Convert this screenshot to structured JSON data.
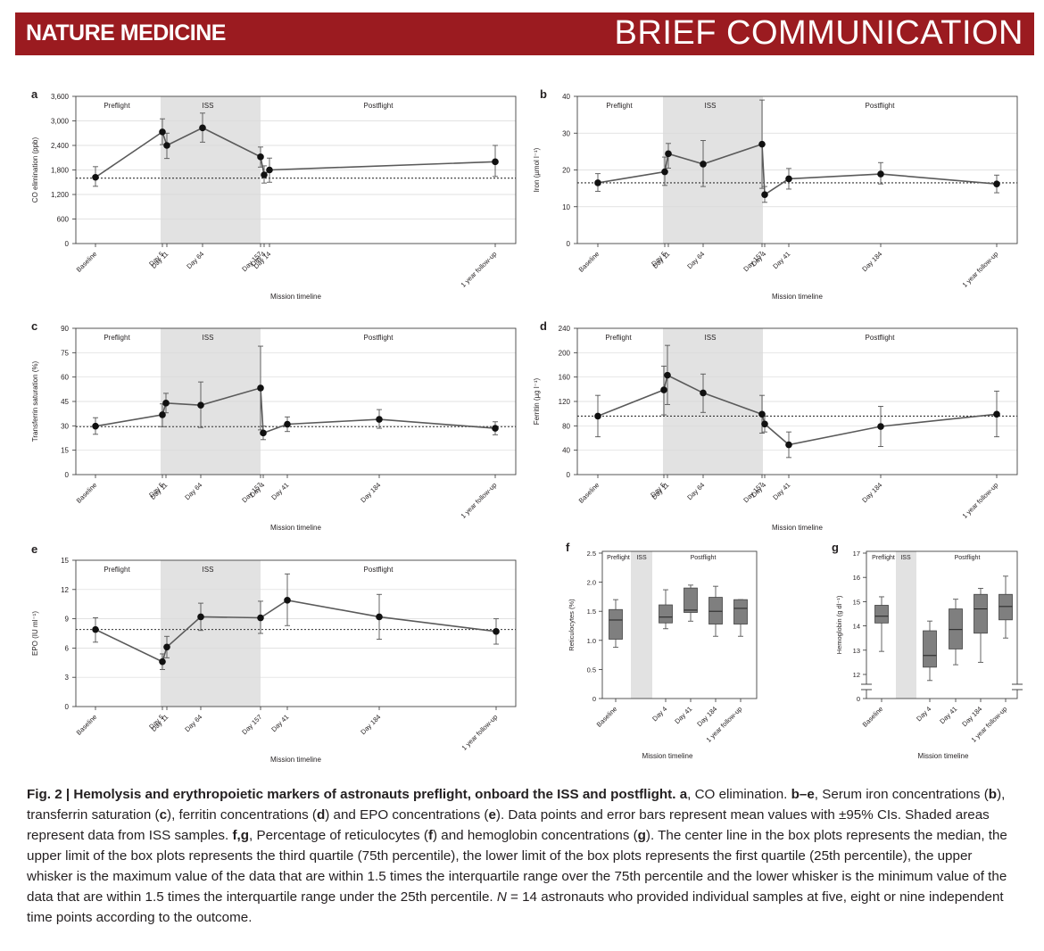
{
  "header": {
    "journal": "NATURE MEDICINE",
    "section": "BRIEF COMMUNICATION"
  },
  "colors": {
    "header_bg": "#9b1b20",
    "shade": "#e2e2e2",
    "box_fill": "#7f7f7f",
    "line": "#5a5a5a"
  },
  "caption": {
    "fig_label": "Fig. 2 | Hemolysis and erythropoietic markers of astronauts preflight, onboard the ISS and postflight.",
    "a_letter": "a",
    "a_text": ", CO elimination. ",
    "be_letters": "b–e",
    "be_text": ", Serum iron concentrations (",
    "b_letter": "b",
    "b_text": "), transferrin saturation (",
    "c_letter": "c",
    "c_text": "), ferritin concentrations (",
    "d_letter": "d",
    "d_text": ") and EPO concentrations (",
    "e_letter": "e",
    "e_text": "). Data points and error bars represent mean values with ±95% CIs. Shaded areas represent data from ISS samples. ",
    "fg_letters": "f,g",
    "fg_text": ", Percentage of reticulocytes (",
    "f_letter": "f",
    "f_text": ") and hemoglobin concentrations (",
    "g_letter": "g",
    "g_text": "). The center line in the box plots represents the median, the upper limit of the box plots represents the third quartile (75th percentile), the lower limit of the box plots represents the first quartile (25th percentile), the upper whisker is the maximum value of the data that are within 1.5 times the interquartile range over the 75th percentile and the lower whisker is the minimum value of the data that are within 1.5 times the interquartile range under the 25th percentile. ",
    "n_symbol": "N",
    "n_text": " = 14 astronauts who provided individual samples at five, eight or nine independent time points according to the outcome."
  },
  "chart_data": [
    {
      "panel": "a",
      "type": "line",
      "ylabel": "CO elimination (ppb)",
      "xlabel": "Mission timeline",
      "ylim": [
        0,
        3600
      ],
      "yticks": [
        0,
        600,
        1200,
        1800,
        2400,
        3000,
        3600
      ],
      "yticklabels": [
        "0",
        "600",
        "1,200",
        "1,800",
        "2,400",
        "3,000",
        "3,600"
      ],
      "ticks": [
        "Baseline",
        "Day 5",
        "Day 11",
        "Day 64",
        "Day 157",
        "Day 4",
        "Day 14",
        "1 year follow-up"
      ],
      "regions": [
        "Preflight",
        "ISS",
        "Postflight"
      ],
      "reference_line": 1600,
      "series": [
        {
          "points": [
            {
              "x": "Baseline",
              "y": 1620,
              "lo": 1400,
              "hi": 1880
            },
            {
              "x": "Day 5",
              "y": 2730,
              "lo": 2420,
              "hi": 3050
            },
            {
              "x": "Day 11",
              "y": 2400,
              "lo": 2080,
              "hi": 2700
            },
            {
              "x": "Day 64",
              "y": 2830,
              "lo": 2480,
              "hi": 3190
            },
            {
              "x": "Day 157",
              "y": 2120,
              "lo": 1870,
              "hi": 2360
            },
            {
              "x": "Day 4",
              "y": 1680,
              "lo": 1480,
              "hi": 1900
            },
            {
              "x": "Day 14",
              "y": 1800,
              "lo": 1500,
              "hi": 2090
            },
            {
              "x": "1 year follow-up",
              "y": 2000,
              "lo": 1640,
              "hi": 2400
            }
          ]
        }
      ]
    },
    {
      "panel": "b",
      "type": "line",
      "ylabel": "Iron (µmol l⁻¹)",
      "xlabel": "Mission timeline",
      "ylim": [
        0,
        40
      ],
      "yticks": [
        0,
        10,
        20,
        30,
        40
      ],
      "yticklabels": [
        "0",
        "10",
        "20",
        "30",
        "40"
      ],
      "ticks": [
        "Baseline",
        "Day 5",
        "Day 11",
        "Day 64",
        "Day 157",
        "Day 4",
        "Day 41",
        "Day 184",
        "1 year follow-up"
      ],
      "regions": [
        "Preflight",
        "ISS",
        "Postflight"
      ],
      "reference_line": 16.5,
      "series": [
        {
          "points": [
            {
              "x": "Baseline",
              "y": 16.5,
              "lo": 14.2,
              "hi": 19.0
            },
            {
              "x": "Day 5",
              "y": 19.5,
              "lo": 15.8,
              "hi": 23.5
            },
            {
              "x": "Day 11",
              "y": 24.4,
              "lo": 20.5,
              "hi": 27.2
            },
            {
              "x": "Day 64",
              "y": 21.6,
              "lo": 15.5,
              "hi": 28.0
            },
            {
              "x": "Day 157",
              "y": 27.0,
              "lo": 15.0,
              "hi": 39.0
            },
            {
              "x": "Day 4",
              "y": 13.3,
              "lo": 11.2,
              "hi": 15.5
            },
            {
              "x": "Day 41",
              "y": 17.6,
              "lo": 14.8,
              "hi": 20.4
            },
            {
              "x": "Day 184",
              "y": 18.9,
              "lo": 16.2,
              "hi": 22.0
            },
            {
              "x": "1 year follow-up",
              "y": 16.2,
              "lo": 13.8,
              "hi": 18.6
            }
          ]
        }
      ]
    },
    {
      "panel": "c",
      "type": "line",
      "ylabel": "Transferrin saturation (%)",
      "xlabel": "Mission timeline",
      "ylim": [
        0,
        90
      ],
      "yticks": [
        0,
        15,
        30,
        45,
        60,
        75,
        90
      ],
      "yticklabels": [
        "0",
        "15",
        "30",
        "45",
        "60",
        "75",
        "90"
      ],
      "ticks": [
        "Baseline",
        "Day 5",
        "Day 11",
        "Day 64",
        "Day 157",
        "Day 4",
        "Day 41",
        "Day 184",
        "1 year follow-up"
      ],
      "regions": [
        "Preflight",
        "ISS",
        "Postflight"
      ],
      "reference_line": 29.5,
      "series": [
        {
          "points": [
            {
              "x": "Baseline",
              "y": 29.8,
              "lo": 24.8,
              "hi": 35.0
            },
            {
              "x": "Day 5",
              "y": 36.8,
              "lo": 29.5,
              "hi": 43.5
            },
            {
              "x": "Day 11",
              "y": 44.0,
              "lo": 38.0,
              "hi": 50.0
            },
            {
              "x": "Day 64",
              "y": 42.7,
              "lo": 29.0,
              "hi": 57.0
            },
            {
              "x": "Day 157",
              "y": 53.3,
              "lo": 27.5,
              "hi": 79.0
            },
            {
              "x": "Day 4",
              "y": 25.6,
              "lo": 21.5,
              "hi": 29.8
            },
            {
              "x": "Day 41",
              "y": 31.0,
              "lo": 26.5,
              "hi": 35.5
            },
            {
              "x": "Day 184",
              "y": 34.0,
              "lo": 28.5,
              "hi": 40.0
            },
            {
              "x": "1 year follow-up",
              "y": 28.5,
              "lo": 24.5,
              "hi": 32.5
            }
          ]
        }
      ]
    },
    {
      "panel": "d",
      "type": "line",
      "ylabel": "Ferritin (µg l⁻¹)",
      "xlabel": "Mission timeline",
      "ylim": [
        0,
        240
      ],
      "yticks": [
        0,
        40,
        80,
        120,
        160,
        200,
        240
      ],
      "yticklabels": [
        "0",
        "40",
        "80",
        "120",
        "160",
        "200",
        "240"
      ],
      "ticks": [
        "Baseline",
        "Day 5",
        "Day 11",
        "Day 64",
        "Day 157",
        "Day 4",
        "Day 41",
        "Day 184",
        "1 year follow-up"
      ],
      "regions": [
        "Preflight",
        "ISS",
        "Postflight"
      ],
      "reference_line": 96,
      "series": [
        {
          "points": [
            {
              "x": "Baseline",
              "y": 96,
              "lo": 62,
              "hi": 130
            },
            {
              "x": "Day 5",
              "y": 139,
              "lo": 98,
              "hi": 178
            },
            {
              "x": "Day 11",
              "y": 163,
              "lo": 115,
              "hi": 212
            },
            {
              "x": "Day 64",
              "y": 134,
              "lo": 102,
              "hi": 165
            },
            {
              "x": "Day 157",
              "y": 99,
              "lo": 68,
              "hi": 130
            },
            {
              "x": "Day 4",
              "y": 83,
              "lo": 70,
              "hi": 96
            },
            {
              "x": "Day 41",
              "y": 49,
              "lo": 28,
              "hi": 70
            },
            {
              "x": "Day 184",
              "y": 79,
              "lo": 46,
              "hi": 112
            },
            {
              "x": "1 year follow-up",
              "y": 99,
              "lo": 62,
              "hi": 137
            }
          ]
        }
      ]
    },
    {
      "panel": "e",
      "type": "line",
      "ylabel": "EPO (IU ml⁻¹)",
      "xlabel": "Mission timeline",
      "ylim": [
        0,
        15
      ],
      "yticks": [
        0,
        3,
        6,
        9,
        12,
        15
      ],
      "yticklabels": [
        "0",
        "3",
        "6",
        "9",
        "12",
        "15"
      ],
      "ticks": [
        "Baseline",
        "Day 5",
        "Day 11",
        "Day 64",
        "Day 157",
        "Day 41",
        "Day 184",
        "1 year follow-up"
      ],
      "regions": [
        "Preflight",
        "ISS",
        "Postflight"
      ],
      "reference_line": 7.9,
      "series": [
        {
          "points": [
            {
              "x": "Baseline",
              "y": 7.9,
              "lo": 6.6,
              "hi": 9.1
            },
            {
              "x": "Day 5",
              "y": 4.6,
              "lo": 3.8,
              "hi": 5.4
            },
            {
              "x": "Day 11",
              "y": 6.1,
              "lo": 5.0,
              "hi": 7.2
            },
            {
              "x": "Day 64",
              "y": 9.2,
              "lo": 7.8,
              "hi": 10.6
            },
            {
              "x": "Day 157",
              "y": 9.1,
              "lo": 7.5,
              "hi": 10.8
            },
            {
              "x": "Day 41",
              "y": 10.9,
              "lo": 8.3,
              "hi": 13.6
            },
            {
              "x": "Day 184",
              "y": 9.2,
              "lo": 6.9,
              "hi": 11.5
            },
            {
              "x": "1 year follow-up",
              "y": 7.7,
              "lo": 6.4,
              "hi": 9.0
            }
          ]
        }
      ]
    },
    {
      "panel": "f",
      "type": "box",
      "ylabel": "Reticulocytes (%)",
      "xlabel": "Mission timeline",
      "ylim": [
        0,
        2.5
      ],
      "yticks": [
        0,
        0.5,
        1.0,
        1.5,
        2.0,
        2.5
      ],
      "yticklabels": [
        "0",
        "0.5",
        "1.0",
        "1.5",
        "2.0",
        "2.5"
      ],
      "regions": [
        "Preflight",
        "ISS",
        "Postflight"
      ],
      "boxes": [
        {
          "label": "Baseline",
          "min": 0.88,
          "q1": 1.02,
          "median": 1.35,
          "q3": 1.53,
          "max": 1.7
        },
        {
          "label": "Day 4",
          "min": 1.2,
          "q1": 1.3,
          "median": 1.4,
          "q3": 1.61,
          "max": 1.87
        },
        {
          "label": "Day 41",
          "min": 1.33,
          "q1": 1.48,
          "median": 1.52,
          "q3": 1.9,
          "max": 1.95
        },
        {
          "label": "Day 184",
          "min": 1.07,
          "q1": 1.28,
          "median": 1.5,
          "q3": 1.74,
          "max": 1.93
        },
        {
          "label": "1 year follow-up",
          "min": 1.07,
          "q1": 1.28,
          "median": 1.55,
          "q3": 1.7,
          "max": 1.7
        }
      ]
    },
    {
      "panel": "g",
      "type": "box",
      "ylabel": "Hemoglobin (g dl⁻¹)",
      "xlabel": "Mission timeline",
      "ylim": [
        12,
        17
      ],
      "yticks": [
        12,
        13,
        14,
        15,
        16,
        17
      ],
      "yticklabels": [
        "12",
        "13",
        "14",
        "15",
        "16",
        "17"
      ],
      "zero_label": "0",
      "regions": [
        "Preflight",
        "ISS",
        "Postflight"
      ],
      "boxes": [
        {
          "label": "Baseline",
          "min": 12.95,
          "q1": 14.12,
          "median": 14.4,
          "q3": 14.85,
          "max": 15.2
        },
        {
          "label": "Day 4",
          "min": 11.75,
          "q1": 12.3,
          "median": 12.78,
          "q3": 13.8,
          "max": 14.2
        },
        {
          "label": "Day 41",
          "min": 12.4,
          "q1": 13.05,
          "median": 13.85,
          "q3": 14.7,
          "max": 15.1
        },
        {
          "label": "Day 184",
          "min": 12.5,
          "q1": 13.7,
          "median": 14.7,
          "q3": 15.3,
          "max": 15.55
        },
        {
          "label": "1 year follow-up",
          "min": 13.5,
          "q1": 14.25,
          "median": 14.8,
          "q3": 15.3,
          "max": 16.05
        }
      ]
    }
  ]
}
